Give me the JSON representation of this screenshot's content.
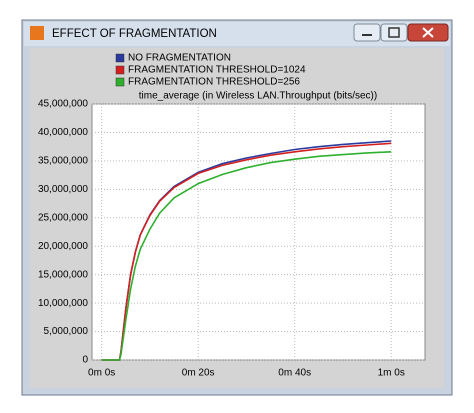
{
  "window": {
    "title": "EFFECT OF FRAGMENTATION"
  },
  "chart_data": {
    "type": "line",
    "title": "time_average (in Wireless LAN.Throughput (bits/sec))",
    "x": [
      0,
      3.7,
      4,
      5,
      6,
      7,
      8,
      10,
      12,
      15,
      20,
      25,
      30,
      35,
      40,
      45,
      50,
      55,
      60
    ],
    "series": [
      {
        "name": "NO FRAGMENTATION",
        "color": "#2b3a9e",
        "values": [
          0,
          0,
          1500000,
          9000000,
          15000000,
          19000000,
          22000000,
          25500000,
          28000000,
          30500000,
          33000000,
          34500000,
          35500000,
          36300000,
          37000000,
          37500000,
          37900000,
          38200000,
          38500000
        ]
      },
      {
        "name": "FRAGMENTATION THRESHOLD=1024",
        "color": "#d42020",
        "values": [
          0,
          0,
          1500000,
          9000000,
          15000000,
          19000000,
          22000000,
          25400000,
          27900000,
          30300000,
          32800000,
          34200000,
          35200000,
          36000000,
          36600000,
          37100000,
          37500000,
          37800000,
          38100000
        ]
      },
      {
        "name": "FRAGMENTATION THRESHOLD=256",
        "color": "#2eb02e",
        "values": [
          0,
          0,
          1000000,
          7000000,
          12500000,
          16500000,
          19500000,
          23000000,
          25800000,
          28500000,
          31000000,
          32600000,
          33800000,
          34700000,
          35300000,
          35800000,
          36100000,
          36400000,
          36600000
        ]
      }
    ],
    "xlim": [
      -2,
      67
    ],
    "xticks": [
      {
        "value": 0,
        "label": "0m 0s"
      },
      {
        "value": 20,
        "label": "0m 20s"
      },
      {
        "value": 40,
        "label": "0m 40s"
      },
      {
        "value": 60,
        "label": "1m 0s"
      }
    ],
    "ylim": [
      0,
      45000000
    ],
    "yticks": [
      0,
      {
        "value": 5000000,
        "label": "5,000,000"
      },
      {
        "value": 10000000,
        "label": "10,000,000"
      },
      {
        "value": 15000000,
        "label": "15,000,000"
      },
      {
        "value": 20000000,
        "label": "20,000,000"
      },
      {
        "value": 25000000,
        "label": "25,000,000"
      },
      {
        "value": 30000000,
        "label": "30,000,000"
      },
      {
        "value": 35000000,
        "label": "35,000,000"
      },
      {
        "value": 40000000,
        "label": "40,000,000"
      },
      {
        "value": 45000000,
        "label": "45,000,000"
      }
    ],
    "grid": true
  }
}
